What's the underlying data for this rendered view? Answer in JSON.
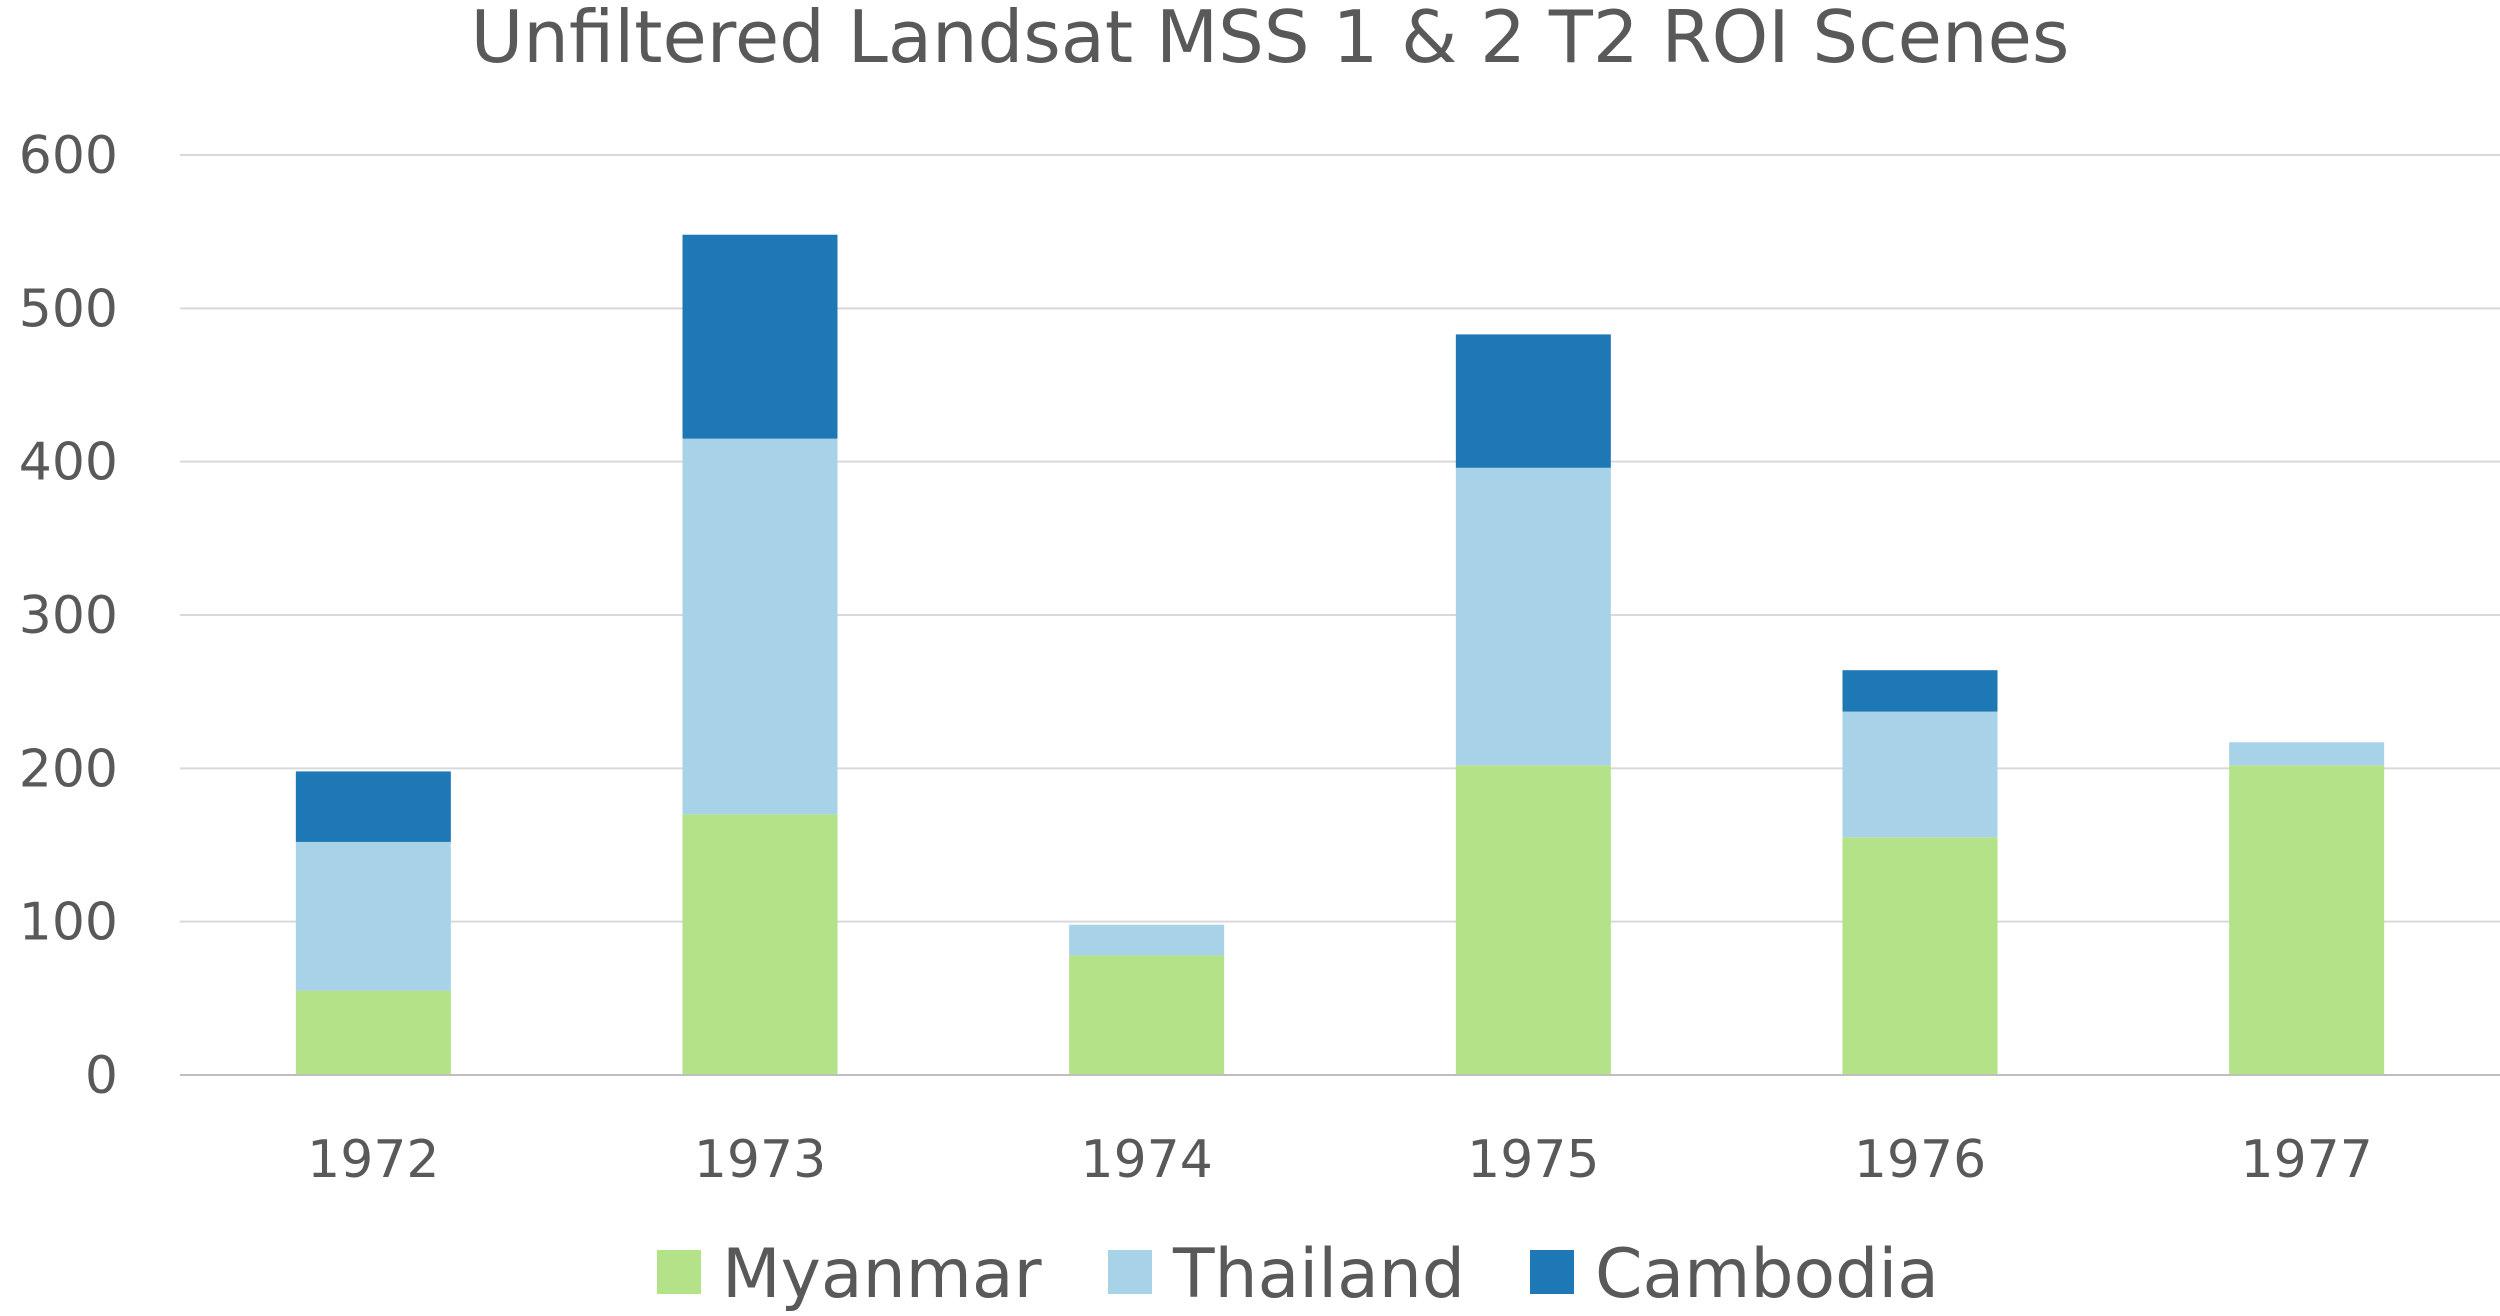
{
  "chart_data": {
    "type": "bar",
    "stacked": true,
    "title": "Unfiltered Landsat MSS 1 & 2 T2 ROI Scenes",
    "xlabel": "",
    "ylabel": "",
    "categories": [
      "1972",
      "1973",
      "1974",
      "1975",
      "1976",
      "1977"
    ],
    "ylim": [
      0,
      600
    ],
    "yticks": [
      0,
      100,
      200,
      300,
      400,
      500,
      600
    ],
    "grid": true,
    "legend_position": "bottom",
    "series": [
      {
        "name": "Myanmar",
        "color": "#b3e289",
        "values": [
          55,
          170,
          78,
          202,
          155,
          202
        ]
      },
      {
        "name": "Thailand",
        "color": "#a8d2e7",
        "values": [
          97,
          245,
          20,
          194,
          82,
          15
        ]
      },
      {
        "name": "Cambodia",
        "color": "#1e78b6",
        "values": [
          46,
          133,
          0,
          87,
          27,
          0
        ]
      }
    ]
  }
}
